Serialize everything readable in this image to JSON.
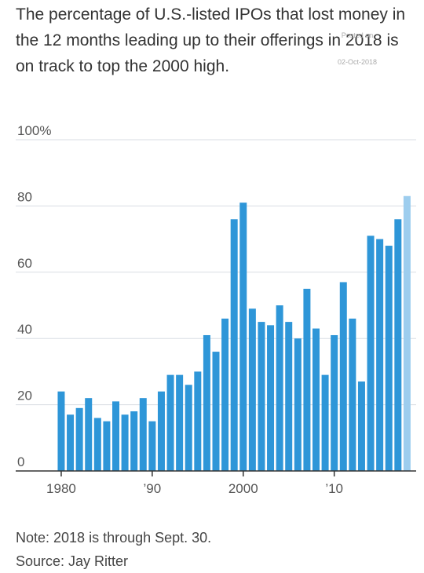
{
  "chart_data": {
    "type": "bar",
    "title": "The percentage of U.S.-listed IPOs that lost money in the 12 months leading up to their offerings in 2018 is on track to top the 2000 high.",
    "watermark": [
      "Posted on",
      "02-Oct-2018"
    ],
    "x": [
      1980,
      1981,
      1982,
      1983,
      1984,
      1985,
      1986,
      1987,
      1988,
      1989,
      1990,
      1991,
      1992,
      1993,
      1994,
      1995,
      1996,
      1997,
      1998,
      1999,
      2000,
      2001,
      2002,
      2003,
      2004,
      2005,
      2006,
      2007,
      2008,
      2009,
      2010,
      2011,
      2012,
      2013,
      2014,
      2015,
      2016,
      2017,
      2018
    ],
    "values": [
      24,
      17,
      19,
      22,
      16,
      15,
      21,
      17,
      18,
      22,
      15,
      24,
      29,
      29,
      26,
      30,
      41,
      36,
      46,
      76,
      81,
      49,
      45,
      44,
      50,
      45,
      40,
      55,
      43,
      29,
      41,
      57,
      46,
      27,
      71,
      70,
      68,
      76,
      83
    ],
    "colors": [
      "#2e96d8",
      "#2e96d8",
      "#2e96d8",
      "#2e96d8",
      "#2e96d8",
      "#2e96d8",
      "#2e96d8",
      "#2e96d8",
      "#2e96d8",
      "#2e96d8",
      "#2e96d8",
      "#2e96d8",
      "#2e96d8",
      "#2e96d8",
      "#2e96d8",
      "#2e96d8",
      "#2e96d8",
      "#2e96d8",
      "#2e96d8",
      "#2e96d8",
      "#2e96d8",
      "#2e96d8",
      "#2e96d8",
      "#2e96d8",
      "#2e96d8",
      "#2e96d8",
      "#2e96d8",
      "#2e96d8",
      "#2e96d8",
      "#2e96d8",
      "#2e96d8",
      "#2e96d8",
      "#2e96d8",
      "#2e96d8",
      "#2e96d8",
      "#2e96d8",
      "#2e96d8",
      "#2e96d8",
      "#9dcdee"
    ],
    "xlim": [
      1975,
      2019
    ],
    "xticks": [
      1980,
      {
        "value": 1990,
        "label": "’90"
      },
      2000,
      {
        "value": 2010,
        "label": "’10"
      }
    ],
    "ylim": [
      0,
      100
    ],
    "yticks": [
      0,
      20,
      40,
      60,
      80,
      {
        "value": 100,
        "label": "100%"
      }
    ],
    "grid": true,
    "notes": [
      "Note: 2018 is through Sept. 30.",
      "Source: Jay Ritter"
    ]
  }
}
